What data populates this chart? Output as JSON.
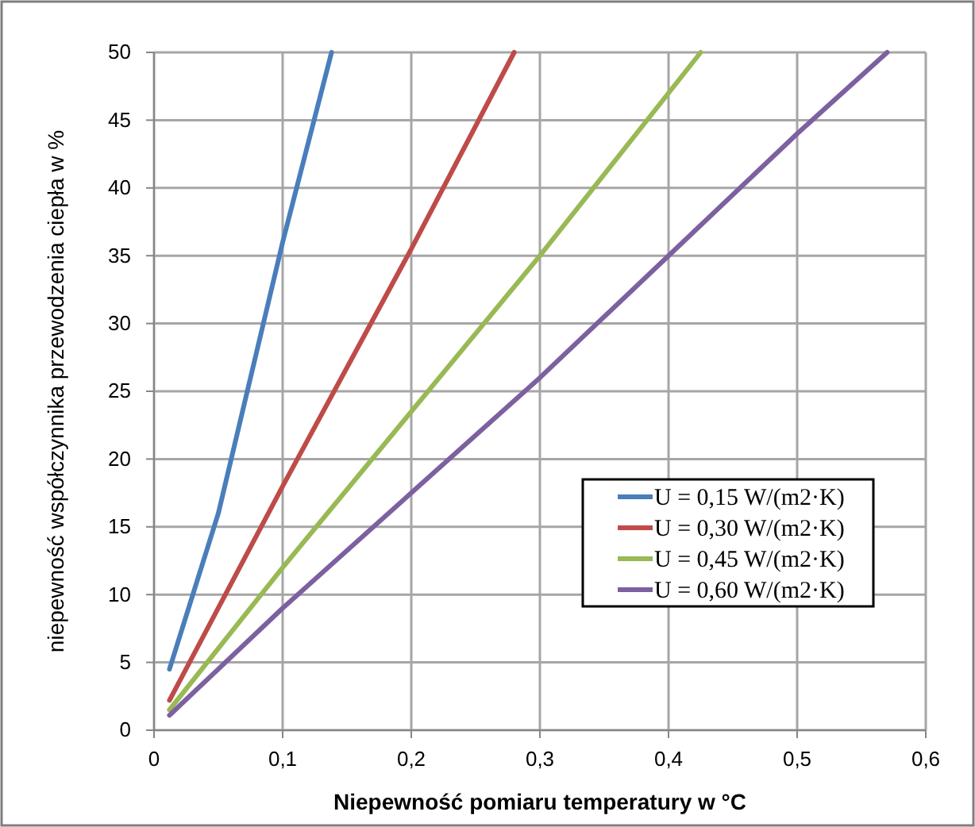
{
  "chart_data": {
    "type": "line",
    "xlabel": "Niepewność pomiaru temperatury w °C",
    "ylabel": "niepewność współczynnika  przewodzenia ciepła w %",
    "xlim": [
      0,
      0.6
    ],
    "xticks": [
      {
        "value": 0,
        "label": "0"
      },
      {
        "value": 0.1,
        "label": "0,1"
      },
      {
        "value": 0.2,
        "label": "0,2"
      },
      {
        "value": 0.3,
        "label": "0,3"
      },
      {
        "value": 0.4,
        "label": "0,4"
      },
      {
        "value": 0.5,
        "label": "0,5"
      },
      {
        "value": 0.6,
        "label": "0,6"
      }
    ],
    "ylim": [
      0,
      50
    ],
    "yticks": [
      0,
      5,
      10,
      15,
      20,
      25,
      30,
      35,
      40,
      45,
      50
    ],
    "grid": true,
    "legend": "right",
    "marker": "none",
    "line_style": "solid",
    "series": [
      {
        "name": "U = 0,15 W/(m2·K)",
        "color": "#4a7ebb",
        "x": [
          0.012,
          0.05,
          0.1,
          0.138
        ],
        "values": [
          4.5,
          16,
          36,
          50
        ]
      },
      {
        "name": "U = 0,30 W/(m2·K)",
        "color": "#be4b48",
        "x": [
          0.012,
          0.1,
          0.2,
          0.28
        ],
        "values": [
          2.2,
          18,
          35.5,
          50
        ]
      },
      {
        "name": "U = 0,45 W/(m2·K)",
        "color": "#98b954",
        "x": [
          0.012,
          0.1,
          0.2,
          0.3,
          0.4,
          0.425
        ],
        "values": [
          1.5,
          12,
          23.5,
          35,
          47,
          50
        ]
      },
      {
        "name": "U = 0,60 W/(m2·K)",
        "color": "#7d60a0",
        "x": [
          0.012,
          0.1,
          0.2,
          0.3,
          0.4,
          0.5,
          0.57
        ],
        "values": [
          1.1,
          9,
          17.5,
          26,
          35,
          44,
          50
        ]
      }
    ]
  }
}
